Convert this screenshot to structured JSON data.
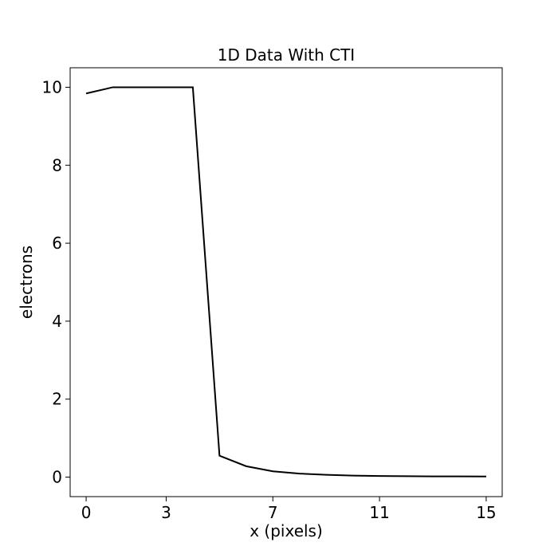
{
  "chart_data": {
    "type": "line",
    "title": "1D Data With CTI",
    "xlabel": "x (pixels)",
    "ylabel": "electrons",
    "xlim": [
      -0.6,
      15.6
    ],
    "ylim": [
      -0.5,
      10.5
    ],
    "grid": false,
    "x_ticks": [
      0,
      3,
      7,
      11,
      15
    ],
    "y_ticks": [
      0,
      2,
      4,
      6,
      8,
      10
    ],
    "x_tick_labels": [
      "0",
      "3",
      "7",
      "11",
      "15"
    ],
    "y_tick_labels": [
      "0",
      "2",
      "4",
      "6",
      "8",
      "10"
    ],
    "line_color": "#000000",
    "x": [
      0,
      1,
      2,
      3,
      4,
      5,
      6,
      7,
      8,
      9,
      10,
      11,
      12,
      13,
      14,
      15
    ],
    "y": [
      9.84,
      10.0,
      10.0,
      10.0,
      10.0,
      0.55,
      0.28,
      0.15,
      0.09,
      0.06,
      0.04,
      0.03,
      0.025,
      0.02,
      0.018,
      0.015
    ]
  }
}
